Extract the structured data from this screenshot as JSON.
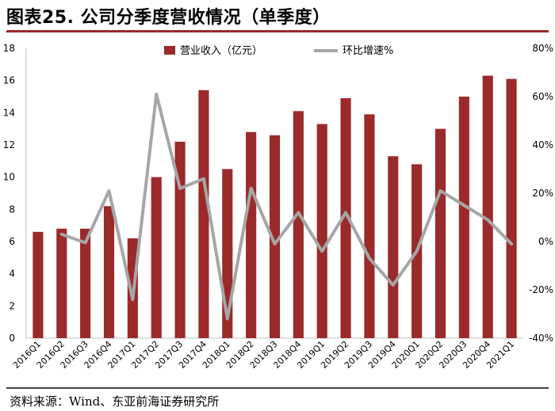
{
  "header": {
    "title": "图表25. 公司分季度营收情况（单季度）"
  },
  "footer": {
    "source": "资料来源：Wind、东亚前海证券研究所"
  },
  "colors": {
    "bar": "#9b2a2a",
    "line": "#a6a6a6",
    "title_rule": "#9b2a2a"
  },
  "chart_data": {
    "type": "bar",
    "categories": [
      "2016Q1",
      "2016Q2",
      "2016Q3",
      "2016Q4",
      "2017Q1",
      "2017Q2",
      "2017Q3",
      "2017Q4",
      "2018Q1",
      "2018Q2",
      "2018Q3",
      "2018Q4",
      "2019Q1",
      "2019Q2",
      "2019Q3",
      "2019Q4",
      "2020Q1",
      "2020Q2",
      "2020Q3",
      "2020Q4",
      "2021Q1"
    ],
    "series": [
      {
        "name": "营业收入（亿元）",
        "type": "bar",
        "axis": "left",
        "values": [
          6.6,
          6.8,
          6.8,
          8.2,
          6.2,
          10.0,
          12.2,
          15.4,
          10.5,
          12.8,
          12.6,
          14.1,
          13.3,
          14.9,
          13.9,
          11.3,
          10.8,
          13.0,
          15.0,
          16.3,
          16.1
        ]
      },
      {
        "name": "环比增速%",
        "type": "line",
        "axis": "right",
        "values": [
          null,
          3,
          -0.5,
          21,
          -24,
          61,
          22,
          26,
          -32,
          22,
          -1,
          12,
          -4,
          12,
          -7,
          -18,
          -4,
          21,
          15,
          9,
          -1
        ]
      }
    ],
    "left_axis": {
      "min": 0,
      "max": 18,
      "ticks": [
        "0",
        "2",
        "4",
        "6",
        "8",
        "10",
        "12",
        "14",
        "16",
        "18"
      ]
    },
    "right_axis": {
      "min": -40,
      "max": 80,
      "ticks": [
        "-40%",
        "-20%",
        "0%",
        "20%",
        "40%",
        "60%",
        "80%"
      ]
    },
    "legend": {
      "position": "top-center"
    },
    "grid": false
  }
}
